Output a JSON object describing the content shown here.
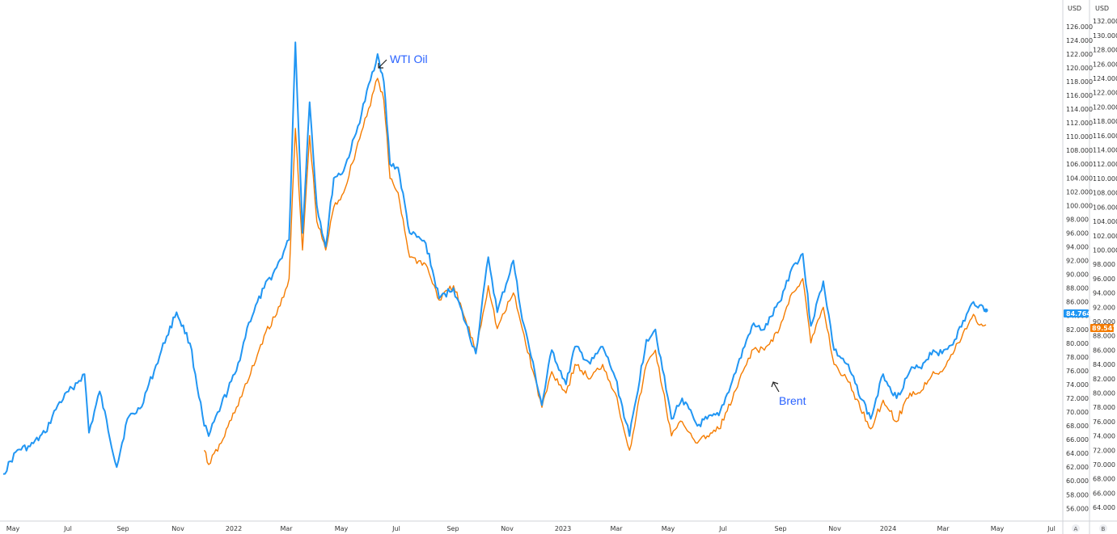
{
  "chart_data": {
    "type": "line",
    "title": "",
    "xlabel": "",
    "ylabel": "",
    "x_tick_labels": [
      "May",
      "Jul",
      "Sep",
      "Nov",
      "2022",
      "Mar",
      "May",
      "Jul",
      "Sep",
      "Nov",
      "2023",
      "Mar",
      "May",
      "Jul",
      "Sep",
      "Nov",
      "2024",
      "Mar",
      "May",
      "Jul"
    ],
    "left_axis": {
      "unit": "USD",
      "ylim": [
        55.1,
        127.5
      ],
      "ticks": [
        "56.000",
        "58.000",
        "60.000",
        "62.000",
        "64.000",
        "66.000",
        "68.000",
        "70.000",
        "72.000",
        "74.000",
        "76.000",
        "78.000",
        "80.000",
        "82.000",
        "84.000",
        "86.000",
        "88.000",
        "90.000",
        "92.000",
        "94.000",
        "96.000",
        "98.000",
        "100.000",
        "102.000",
        "104.000",
        "106.000",
        "108.000",
        "110.000",
        "112.000",
        "114.000",
        "116.000",
        "118.000",
        "120.000",
        "122.000",
        "124.000",
        "126.000"
      ],
      "last_value_label": "84.764"
    },
    "right_axis": {
      "unit": "USD",
      "ylim": [
        63.0,
        132.7
      ],
      "ticks": [
        "64.000",
        "66.000",
        "68.000",
        "70.000",
        "72.000",
        "74.000",
        "76.000",
        "78.000",
        "80.000",
        "82.000",
        "84.000",
        "86.000",
        "88.000",
        "90.000",
        "92.000",
        "94.000",
        "96.000",
        "98.000",
        "100.000",
        "102.000",
        "104.000",
        "106.000",
        "108.000",
        "110.000",
        "112.000",
        "114.000",
        "116.000",
        "118.000",
        "120.000",
        "122.000",
        "124.000",
        "126.000",
        "128.000",
        "130.000",
        "132.000"
      ],
      "last_value_label": "89.547"
    },
    "series": [
      {
        "axis": "left",
        "color": "#2196f3",
        "x": [
          "2021-04-15",
          "2021-05-01",
          "2021-05-15",
          "2021-06-01",
          "2021-06-15",
          "2021-07-01",
          "2021-07-15",
          "2021-07-20",
          "2021-08-01",
          "2021-08-20",
          "2021-09-01",
          "2021-09-15",
          "2021-10-01",
          "2021-10-15",
          "2021-10-26",
          "2021-11-10",
          "2021-11-26",
          "2021-12-01",
          "2021-12-15",
          "2022-01-01",
          "2022-01-15",
          "2022-02-01",
          "2022-02-15",
          "2022-03-01",
          "2022-03-08",
          "2022-03-16",
          "2022-03-24",
          "2022-04-01",
          "2022-04-11",
          "2022-04-20",
          "2022-05-01",
          "2022-05-15",
          "2022-06-08",
          "2022-06-15",
          "2022-06-22",
          "2022-07-01",
          "2022-07-14",
          "2022-08-01",
          "2022-08-16",
          "2022-09-01",
          "2022-09-26",
          "2022-10-10",
          "2022-10-20",
          "2022-11-07",
          "2022-11-15",
          "2022-12-09",
          "2022-12-20",
          "2023-01-05",
          "2023-01-15",
          "2023-02-01",
          "2023-02-15",
          "2023-03-01",
          "2023-03-17",
          "2023-04-05",
          "2023-04-15",
          "2023-05-03",
          "2023-05-15",
          "2023-06-01",
          "2023-06-12",
          "2023-06-25",
          "2023-07-10",
          "2023-08-01",
          "2023-08-15",
          "2023-09-01",
          "2023-09-15",
          "2023-09-27",
          "2023-10-06",
          "2023-10-20",
          "2023-11-01",
          "2023-11-15",
          "2023-12-12",
          "2023-12-26",
          "2024-01-10",
          "2024-01-25",
          "2024-02-05",
          "2024-02-20",
          "2024-03-01",
          "2024-03-15",
          "2024-04-05",
          "2024-04-12",
          "2024-04-19"
        ],
        "values": [
          61.0,
          64.5,
          65.0,
          67.0,
          71.0,
          73.5,
          75.5,
          67.0,
          73.0,
          62.0,
          69.0,
          70.5,
          76.0,
          81.0,
          84.5,
          80.0,
          68.0,
          66.5,
          71.0,
          76.0,
          83.0,
          88.0,
          91.0,
          95.0,
          123.7,
          96.0,
          115.0,
          100.0,
          94.0,
          104.0,
          105.0,
          110.5,
          122.0,
          118.0,
          106.0,
          105.5,
          96.0,
          94.5,
          86.5,
          88.0,
          78.5,
          92.5,
          84.5,
          92.0,
          85.0,
          71.0,
          79.0,
          74.0,
          79.5,
          77.0,
          79.5,
          75.0,
          66.5,
          80.5,
          82.0,
          69.0,
          72.0,
          68.0,
          69.0,
          69.5,
          74.5,
          82.5,
          82.0,
          86.0,
          91.0,
          93.0,
          82.5,
          89.0,
          79.0,
          77.0,
          69.0,
          75.5,
          72.0,
          76.0,
          76.5,
          79.0,
          78.5,
          80.5,
          86.0,
          85.5,
          84.764
        ]
      },
      {
        "axis": "right",
        "color": "#f57c00",
        "x": [
          "2021-11-26",
          "2021-12-01",
          "2021-12-15",
          "2022-01-01",
          "2022-01-15",
          "2022-02-01",
          "2022-02-15",
          "2022-03-01",
          "2022-03-08",
          "2022-03-16",
          "2022-03-24",
          "2022-04-01",
          "2022-04-11",
          "2022-04-20",
          "2022-05-01",
          "2022-05-15",
          "2022-06-08",
          "2022-06-15",
          "2022-06-22",
          "2022-07-01",
          "2022-07-14",
          "2022-08-01",
          "2022-08-16",
          "2022-09-01",
          "2022-09-26",
          "2022-10-10",
          "2022-10-20",
          "2022-11-07",
          "2022-11-15",
          "2022-12-09",
          "2022-12-20",
          "2023-01-05",
          "2023-01-15",
          "2023-02-01",
          "2023-02-15",
          "2023-03-01",
          "2023-03-17",
          "2023-04-05",
          "2023-04-15",
          "2023-05-03",
          "2023-05-15",
          "2023-06-01",
          "2023-06-12",
          "2023-06-25",
          "2023-07-10",
          "2023-08-01",
          "2023-08-15",
          "2023-09-01",
          "2023-09-15",
          "2023-09-27",
          "2023-10-06",
          "2023-10-20",
          "2023-11-01",
          "2023-11-15",
          "2023-12-12",
          "2023-12-26",
          "2024-01-10",
          "2024-01-25",
          "2024-02-05",
          "2024-02-20",
          "2024-03-01",
          "2024-03-15",
          "2024-04-05",
          "2024-04-12",
          "2024-04-19"
        ],
        "values": [
          72.0,
          70.0,
          73.0,
          78.0,
          82.0,
          88.0,
          91.0,
          96.0,
          117.0,
          100.0,
          116.0,
          104.0,
          100.0,
          106.0,
          108.0,
          114.0,
          124.0,
          121.0,
          110.0,
          108.0,
          99.0,
          98.0,
          93.0,
          95.0,
          86.0,
          95.0,
          89.0,
          94.0,
          90.0,
          78.0,
          83.0,
          80.0,
          84.0,
          82.0,
          84.0,
          80.0,
          72.0,
          84.0,
          86.0,
          74.0,
          76.0,
          73.0,
          74.0,
          75.0,
          79.0,
          86.0,
          86.0,
          89.0,
          94.0,
          96.0,
          87.0,
          92.0,
          84.0,
          82.0,
          75.0,
          79.0,
          76.0,
          80.0,
          80.0,
          83.0,
          83.0,
          86.0,
          91.0,
          89.5,
          89.547
        ]
      }
    ],
    "annotations": [
      {
        "text": "WTI Oil"
      },
      {
        "text": "Brent"
      }
    ],
    "scale_buttons": [
      "A",
      "B"
    ],
    "grid": false,
    "legend": "none"
  }
}
